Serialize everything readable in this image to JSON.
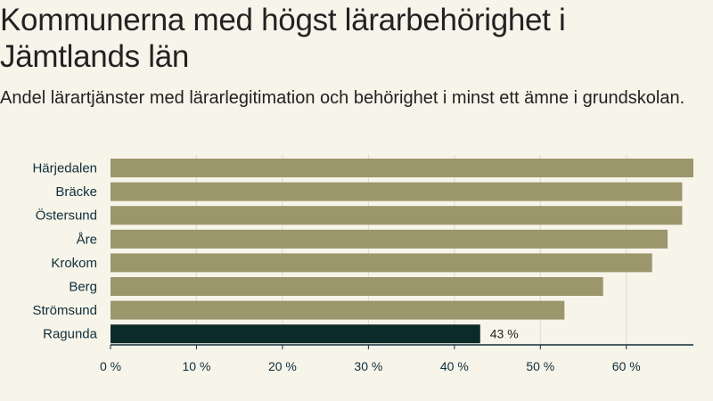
{
  "title": "Kommunerna med högst lärarbehörighet i Jämtlands län",
  "subtitle": "Andel lärartjänster med lärarlegitimation och behörighet i minst ett ämne i grundskolan.",
  "chart_data": {
    "type": "bar",
    "orientation": "horizontal",
    "categories": [
      "Härjedalen",
      "Bräcke",
      "Östersund",
      "Åre",
      "Krokom",
      "Berg",
      "Strömsund",
      "Ragunda"
    ],
    "values": [
      67.8,
      66.5,
      66.5,
      64.8,
      63.0,
      57.3,
      52.8,
      43.0
    ],
    "highlight": "Ragunda",
    "data_labels": {
      "Ragunda": "43 %"
    },
    "xlim": [
      0,
      67.8
    ],
    "xticks": [
      0,
      10,
      20,
      30,
      40,
      50,
      60
    ],
    "xtick_labels": [
      "0 %",
      "10 %",
      "20 %",
      "30 %",
      "40 %",
      "50 %",
      "60 %"
    ],
    "grid": true,
    "colors": {
      "bar": "#9b966b",
      "highlight": "#0b2a2a",
      "grid": "#e0ddd2",
      "axis": "#0f2e3a"
    }
  }
}
